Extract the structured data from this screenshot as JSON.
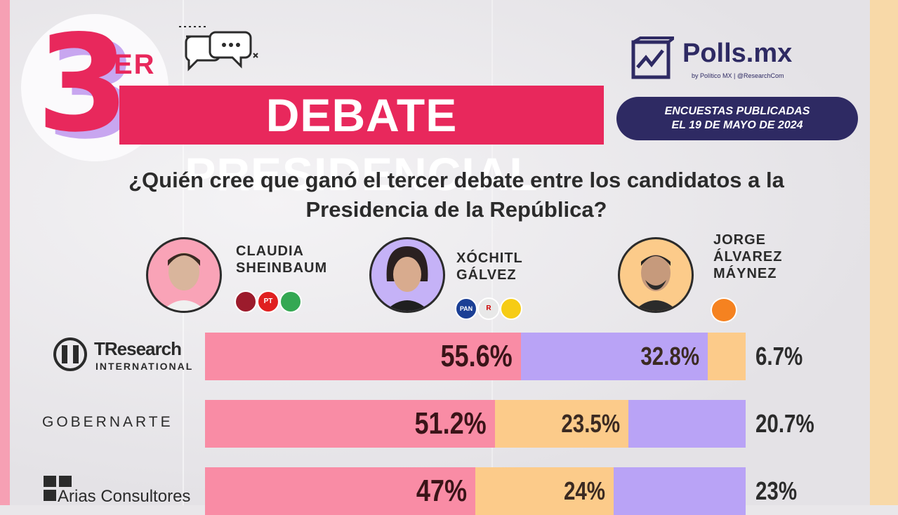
{
  "header": {
    "number": "3",
    "ordinal_suffix": "ER",
    "title": "DEBATE PRESIDENCIAL",
    "logo_name": "Polls.mx",
    "logo_sub": "by Político MX | @ResearchCom",
    "date_line1": "ENCUESTAS PUBLICADAS",
    "date_line2": "EL 19 DE MAYO DE 2024"
  },
  "question": "¿Quién cree que ganó el tercer debate entre los candidatos a la Presidencia de la República?",
  "candidates": [
    {
      "name": "CLAUDIA\nSHEINBAUM",
      "color": "#f98ca5",
      "parties": [
        "morena",
        "PT",
        "PVEM"
      ]
    },
    {
      "name": "XÓCHITL\nGÁLVEZ",
      "color": "#b9a3f6",
      "parties": [
        "PAN",
        "PRI",
        "PRD"
      ]
    },
    {
      "name": "JORGE\nÁLVAREZ\nMÁYNEZ",
      "color": "#fccb8a",
      "parties": [
        "MC"
      ]
    }
  ],
  "pollsters": [
    {
      "name_main": "TResearch",
      "name_sub": "INTERNATIONAL"
    },
    {
      "name_main": "GOBERNARTE",
      "name_sub": ""
    },
    {
      "name_main": "Arias Consultores",
      "name_sub": ""
    }
  ],
  "chart_data": {
    "type": "bar",
    "orientation": "horizontal-stacked",
    "title": "¿Quién cree que ganó el tercer debate entre los candidatos a la Presidencia de la República?",
    "categories": [
      "TResearch International",
      "GobernArte",
      "Arias Consultores"
    ],
    "series": [
      {
        "name": "Claudia Sheinbaum",
        "color": "#f98ca5",
        "values": [
          55.6,
          51.2,
          47
        ]
      },
      {
        "name": "Xóchitl Gálvez",
        "color": "#b9a3f6",
        "values": [
          32.8,
          20.7,
          23
        ]
      },
      {
        "name": "Jorge Álvarez Máynez",
        "color": "#fccb8a",
        "values": [
          6.7,
          23.5,
          24
        ]
      }
    ],
    "segment_order": [
      [
        "Claudia Sheinbaum",
        "Xóchitl Gálvez",
        "Jorge Álvarez Máynez"
      ],
      [
        "Claudia Sheinbaum",
        "Jorge Álvarez Máynez",
        "Xóchitl Gálvez"
      ],
      [
        "Claudia Sheinbaum",
        "Jorge Álvarez Máynez",
        "Xóchitl Gálvez"
      ]
    ],
    "labels": [
      [
        "55.6%",
        "32.8%",
        "6.7%"
      ],
      [
        "51.2%",
        "23.5%",
        "20.7%"
      ],
      [
        "47%",
        "24%",
        "23%"
      ]
    ]
  }
}
